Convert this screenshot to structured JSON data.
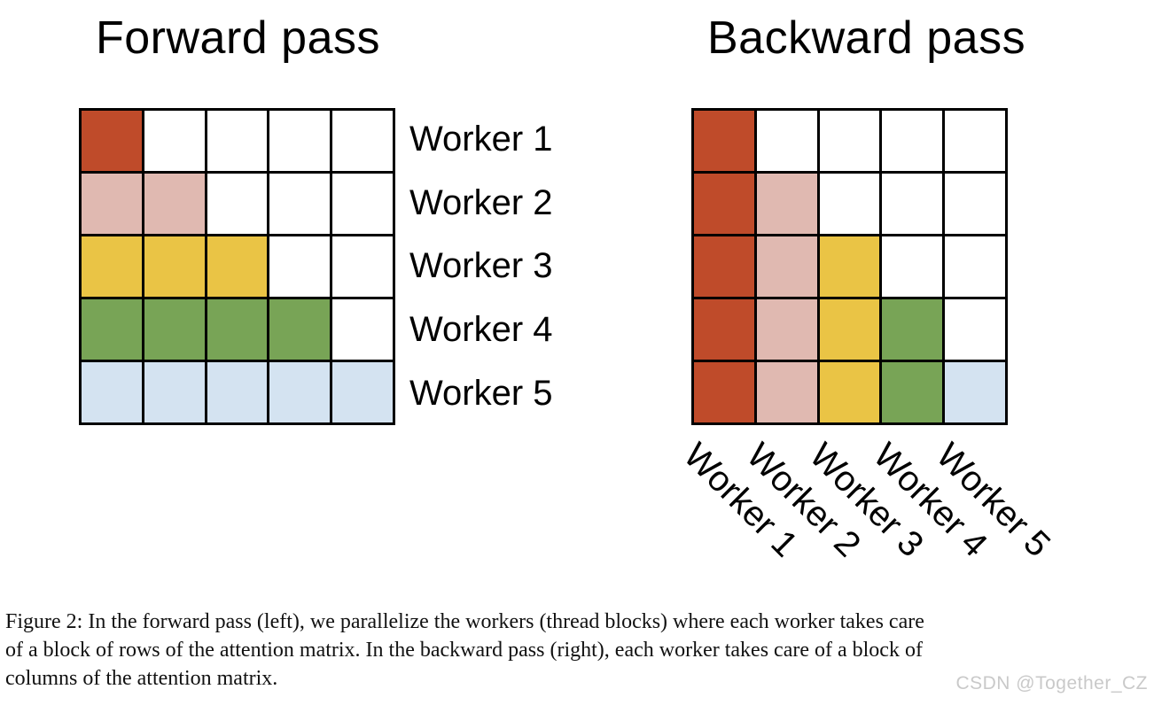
{
  "forward": {
    "title": "Forward pass",
    "row_labels": [
      "Worker 1",
      "Worker 2",
      "Worker 3",
      "Worker 4",
      "Worker 5"
    ],
    "grid": [
      [
        "red",
        "white",
        "white",
        "white",
        "white"
      ],
      [
        "pink",
        "pink",
        "white",
        "white",
        "white"
      ],
      [
        "yellow",
        "yellow",
        "yellow",
        "white",
        "white"
      ],
      [
        "green",
        "green",
        "green",
        "green",
        "white"
      ],
      [
        "blue",
        "blue",
        "blue",
        "blue",
        "blue"
      ]
    ]
  },
  "backward": {
    "title": "Backward pass",
    "col_labels": [
      "Worker 1",
      "Worker 2",
      "Worker 3",
      "Worker 4",
      "Worker 5"
    ],
    "grid": [
      [
        "red",
        "white",
        "white",
        "white",
        "white"
      ],
      [
        "red",
        "pink",
        "white",
        "white",
        "white"
      ],
      [
        "red",
        "pink",
        "yellow",
        "white",
        "white"
      ],
      [
        "red",
        "pink",
        "yellow",
        "green",
        "white"
      ],
      [
        "red",
        "pink",
        "yellow",
        "green",
        "blue"
      ]
    ]
  },
  "colors": {
    "red": "#BF4B2A",
    "pink": "#E0B9B1",
    "yellow": "#EAC445",
    "green": "#78A456",
    "blue": "#D4E3F1",
    "white": "#FFFFFF",
    "grid_line": "#000000"
  },
  "caption": {
    "lines": [
      "Figure 2: In the forward pass (left), we parallelize the workers (thread blocks) where each worker takes care",
      "of a block of rows of the attention matrix. In the backward pass (right), each worker takes care of a block of",
      "columns of the attention matrix."
    ]
  },
  "watermark": "CSDN @Together_CZ"
}
